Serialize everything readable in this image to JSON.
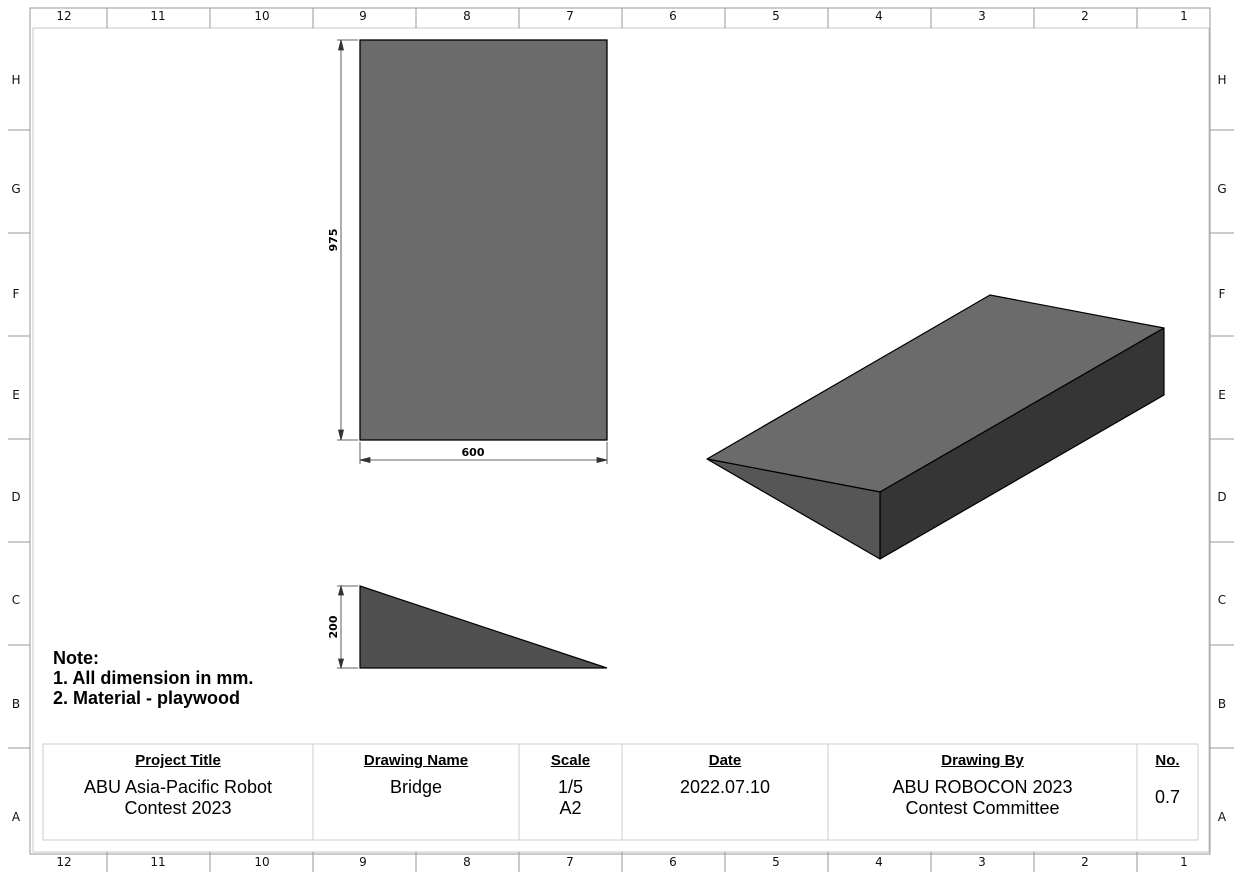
{
  "border": {
    "columns": [
      "12",
      "11",
      "10",
      "9",
      "8",
      "7",
      "6",
      "5",
      "4",
      "3",
      "2",
      "1"
    ],
    "rows": [
      "H",
      "G",
      "F",
      "E",
      "D",
      "C",
      "B",
      "A"
    ]
  },
  "views": {
    "top_view": {
      "width_dim": "600",
      "height_dim": "975"
    },
    "side_view": {
      "height_dim": "200"
    },
    "iso_view": {}
  },
  "notes": {
    "title": "Note:",
    "items": [
      "1. All dimension in mm.",
      "2. Material - playwood"
    ]
  },
  "title_block": {
    "project_title_label": "Project Title",
    "project_title_line1": "ABU Asia-Pacific Robot",
    "project_title_line2": "Contest 2023",
    "drawing_name_label": "Drawing Name",
    "drawing_name": "Bridge",
    "scale_label": "Scale",
    "scale_value": "1/5",
    "sheet_size": "A2",
    "date_label": "Date",
    "date_value": "2022.07.10",
    "drawing_by_label": "Drawing By",
    "drawing_by_line1": "ABU ROBOCON 2023",
    "drawing_by_line2": "Contest Committee",
    "no_label": "No.",
    "no_value": "0.7"
  },
  "colors": {
    "face_top": "#6b6b6b",
    "face_dark": "#353535",
    "face_mid": "#565656",
    "side_fill": "#505050",
    "line": "#000000"
  }
}
